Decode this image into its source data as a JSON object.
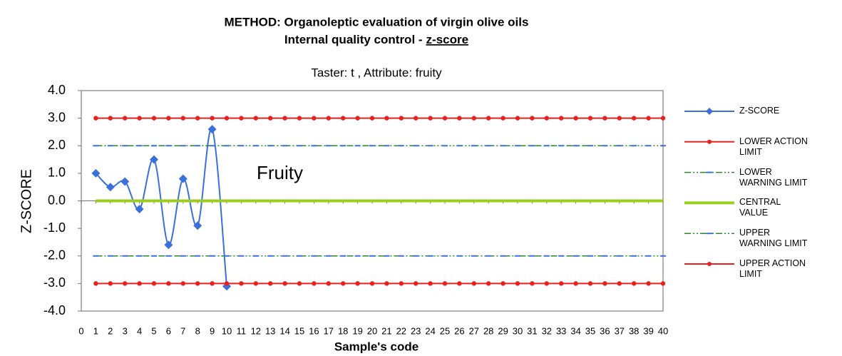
{
  "chart_data": {
    "type": "line",
    "title": [
      "METHOD: Organoleptic evaluation of virgin olive oils",
      "Internal quality control -",
      "z-score"
    ],
    "subtitle": "Taster: t , Attribute: fruity",
    "annotation": "Fruity",
    "x_label": "Sample's code",
    "y_label": "Z-SCORE",
    "x": [
      1,
      2,
      3,
      4,
      5,
      6,
      7,
      8,
      9,
      10,
      11,
      12,
      13,
      14,
      15,
      16,
      17,
      18,
      19,
      20,
      21,
      22,
      23,
      24,
      25,
      26,
      27,
      28,
      29,
      30,
      31,
      32,
      33,
      34,
      35,
      36,
      37,
      38,
      39,
      40
    ],
    "xlim": [
      0,
      40
    ],
    "xticks": [
      0,
      1,
      2,
      3,
      4,
      5,
      6,
      7,
      8,
      9,
      10,
      11,
      12,
      13,
      14,
      15,
      16,
      17,
      18,
      19,
      20,
      21,
      22,
      23,
      24,
      25,
      26,
      27,
      28,
      29,
      30,
      31,
      32,
      33,
      34,
      35,
      36,
      37,
      38,
      39,
      40
    ],
    "ylim": [
      -4,
      4
    ],
    "yticks": [
      {
        "value": 4,
        "label": "4.0"
      },
      {
        "value": 3,
        "label": "3.0"
      },
      {
        "value": 2,
        "label": "2.0"
      },
      {
        "value": 1,
        "label": "1.0"
      },
      {
        "value": 0,
        "label": "0.0"
      },
      {
        "value": -1,
        "label": "-1.0"
      },
      {
        "value": -2,
        "label": "-2.0"
      },
      {
        "value": -3,
        "label": "-3.0"
      },
      {
        "value": -4,
        "label": "-4.0"
      }
    ],
    "grid": false,
    "legend": "right",
    "series": [
      {
        "name": "Z-SCORE",
        "color": "#3b6fd9",
        "marker": "diamond",
        "smooth": true,
        "width": 2,
        "values": [
          1.0,
          0.5,
          0.7,
          -0.3,
          1.5,
          -1.6,
          0.8,
          -0.9,
          2.6,
          -3.1,
          null,
          null,
          null,
          null,
          null,
          null,
          null,
          null,
          null,
          null,
          null,
          null,
          null,
          null,
          null,
          null,
          null,
          null,
          null,
          null,
          null,
          null,
          null,
          null,
          null,
          null,
          null,
          null,
          null,
          null
        ]
      },
      {
        "name": "LOWER ACTION LIMIT",
        "color": "#e8211f",
        "marker": "circle",
        "width": 2,
        "values": [
          3,
          3,
          3,
          3,
          3,
          3,
          3,
          3,
          3,
          3,
          3,
          3,
          3,
          3,
          3,
          3,
          3,
          3,
          3,
          3,
          3,
          3,
          3,
          3,
          3,
          3,
          3,
          3,
          3,
          3,
          3,
          3,
          3,
          3,
          3,
          3,
          3,
          3,
          3,
          3
        ]
      },
      {
        "name": "LOWER WARNING LIMIT",
        "color": "#2a8a2a",
        "marker": "dash",
        "marker_color": "#3b6fd9",
        "dash": "dash-dot-dot",
        "width": 1.5,
        "values": [
          2,
          2,
          2,
          2,
          2,
          2,
          2,
          2,
          2,
          2,
          2,
          2,
          2,
          2,
          2,
          2,
          2,
          2,
          2,
          2,
          2,
          2,
          2,
          2,
          2,
          2,
          2,
          2,
          2,
          2,
          2,
          2,
          2,
          2,
          2,
          2,
          2,
          2,
          2,
          2
        ]
      },
      {
        "name": "CENTRAL VALUE",
        "color": "#9acd1e",
        "marker": null,
        "width": 4,
        "values": [
          0,
          0,
          0,
          0,
          0,
          0,
          0,
          0,
          0,
          0,
          0,
          0,
          0,
          0,
          0,
          0,
          0,
          0,
          0,
          0,
          0,
          0,
          0,
          0,
          0,
          0,
          0,
          0,
          0,
          0,
          0,
          0,
          0,
          0,
          0,
          0,
          0,
          0,
          0,
          0
        ]
      },
      {
        "name": "UPPER WARNING LIMIT",
        "color": "#2a8a2a",
        "marker": "dash",
        "marker_color": "#3b6fd9",
        "dash": "dash-dot-dot",
        "width": 1.5,
        "values": [
          -2,
          -2,
          -2,
          -2,
          -2,
          -2,
          -2,
          -2,
          -2,
          -2,
          -2,
          -2,
          -2,
          -2,
          -2,
          -2,
          -2,
          -2,
          -2,
          -2,
          -2,
          -2,
          -2,
          -2,
          -2,
          -2,
          -2,
          -2,
          -2,
          -2,
          -2,
          -2,
          -2,
          -2,
          -2,
          -2,
          -2,
          -2,
          -2,
          -2
        ]
      },
      {
        "name": "UPPER ACTION LIMIT",
        "color": "#e8211f",
        "marker": "circle",
        "width": 2,
        "values": [
          -3,
          -3,
          -3,
          -3,
          -3,
          -3,
          -3,
          -3,
          -3,
          -3,
          -3,
          -3,
          -3,
          -3,
          -3,
          -3,
          -3,
          -3,
          -3,
          -3,
          -3,
          -3,
          -3,
          -3,
          -3,
          -3,
          -3,
          -3,
          -3,
          -3,
          -3,
          -3,
          -3,
          -3,
          -3,
          -3,
          -3,
          -3,
          -3,
          -3
        ]
      }
    ]
  }
}
